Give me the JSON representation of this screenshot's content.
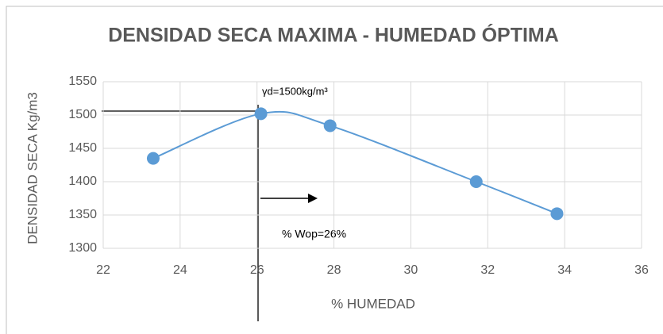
{
  "chart_data": {
    "type": "scatter",
    "title": "DENSIDAD SECA MAXIMA - HUMEDAD ÓPTIMA",
    "x_label": "% HUMEDAD",
    "y_label": "DENSIDAD SECA Kg/m3",
    "x": [
      23.3,
      26.1,
      27.9,
      31.7,
      33.8
    ],
    "values": [
      1435,
      1502,
      1484,
      1400,
      1352
    ],
    "color": "#5b9bd5",
    "smooth_line": true,
    "xlim": [
      22,
      36
    ],
    "xticks": [
      22,
      24,
      26,
      28,
      30,
      32,
      34,
      36
    ],
    "ylim": [
      1300,
      1550
    ],
    "yticks": [
      1300,
      1350,
      1400,
      1450,
      1500,
      1550
    ],
    "grid": true,
    "annotations": [
      "γd=1500kg/m³",
      "% Wop=26%"
    ]
  }
}
